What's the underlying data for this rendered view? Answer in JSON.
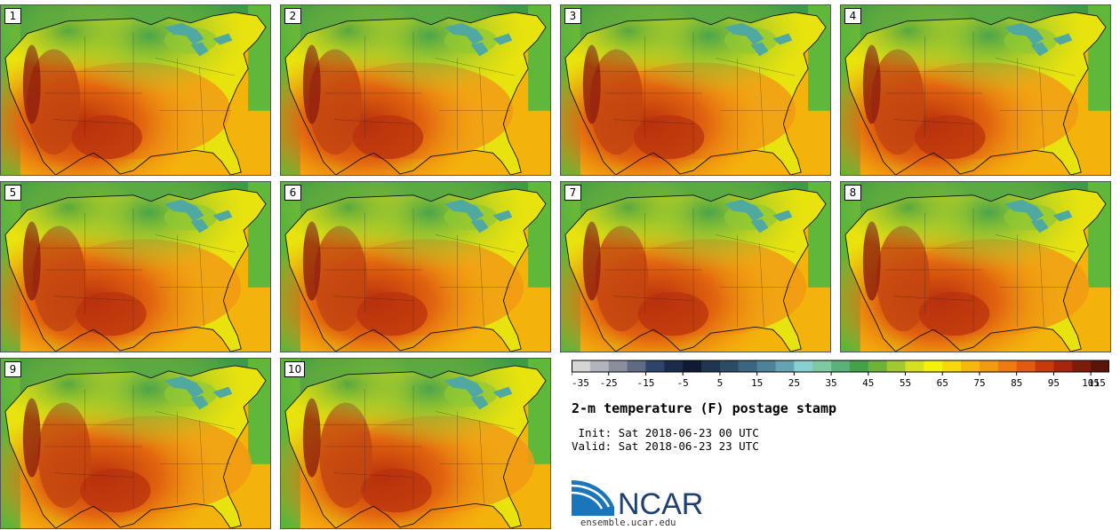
{
  "panels": [
    {
      "label": "1",
      "variant": 0
    },
    {
      "label": "2",
      "variant": 1
    },
    {
      "label": "3",
      "variant": 2
    },
    {
      "label": "4",
      "variant": 3
    },
    {
      "label": "5",
      "variant": 4
    },
    {
      "label": "6",
      "variant": 5
    },
    {
      "label": "7",
      "variant": 6
    },
    {
      "label": "8",
      "variant": 7
    },
    {
      "label": "9",
      "variant": 8
    },
    {
      "label": "10",
      "variant": 9
    }
  ],
  "colorbar": {
    "colors": [
      "#d6d6d6",
      "#b0b4bd",
      "#8a8fa0",
      "#5f6a85",
      "#2f4468",
      "#1b2b4a",
      "#0e1b33",
      "#1f3550",
      "#2e4b66",
      "#3c6680",
      "#4d8299",
      "#66a3b0",
      "#88cfd0",
      "#7fc8a0",
      "#5cb07a",
      "#46a04a",
      "#6fb23a",
      "#a2c930",
      "#d6e020",
      "#f4f20a",
      "#f7d80a",
      "#f6b80c",
      "#f49a10",
      "#ef7a10",
      "#e15a10",
      "#c83a0c",
      "#a8240c",
      "#7e1c0c",
      "#5a140a"
    ],
    "ticks": [
      "-35",
      "-25",
      "-15",
      "-5",
      "5",
      "15",
      "25",
      "35",
      "45",
      "55",
      "65",
      "75",
      "85",
      "95",
      "105",
      "115"
    ]
  },
  "title": "2-m temperature (F) postage stamp",
  "init_line": " Init: Sat 2018-06-23 00 UTC",
  "valid_line": "Valid: Sat 2018-06-23 23 UTC",
  "logo_text": "NCAR",
  "url": "ensemble.ucar.edu"
}
